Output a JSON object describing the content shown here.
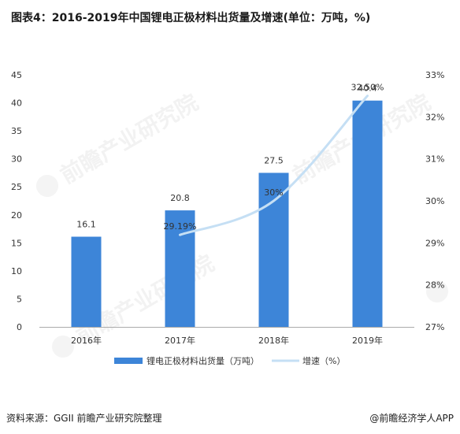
{
  "title": "图表4：2016-2019年中国锂电正极材料出货量及增速(单位：万吨，%)",
  "source": "资料来源：GGII 前瞻产业研究院整理",
  "brand": "@前瞻经济学人APP",
  "colors": {
    "bar": "#3d85d8",
    "line": "#c5dff4",
    "axis": "#aaaaaa",
    "text": "#333333"
  },
  "chart_data": {
    "type": "bar",
    "categories": [
      "2016年",
      "2017年",
      "2018年",
      "2019年"
    ],
    "series": [
      {
        "name": "锂电正极材料出货量（万吨）",
        "type": "bar",
        "values": [
          16.1,
          20.8,
          27.5,
          40.4
        ],
        "labels": [
          "16.1",
          "20.8",
          "27.5",
          "40.4"
        ]
      },
      {
        "name": "增速（%）",
        "type": "line",
        "axis": "right",
        "values": [
          null,
          29.19,
          30,
          32.5
        ],
        "labels": [
          "",
          "29.19%",
          "30%",
          "32.50%"
        ]
      }
    ],
    "ylim": [
      0,
      45
    ],
    "y_ticks": [
      "0",
      "5",
      "10",
      "15",
      "20",
      "25",
      "30",
      "35",
      "40",
      "45"
    ],
    "y2lim": [
      27,
      33
    ],
    "y2_ticks": [
      "27%",
      "28%",
      "29%",
      "30%",
      "31%",
      "32%",
      "33%"
    ],
    "legend_position": "bottom",
    "grid": false
  }
}
